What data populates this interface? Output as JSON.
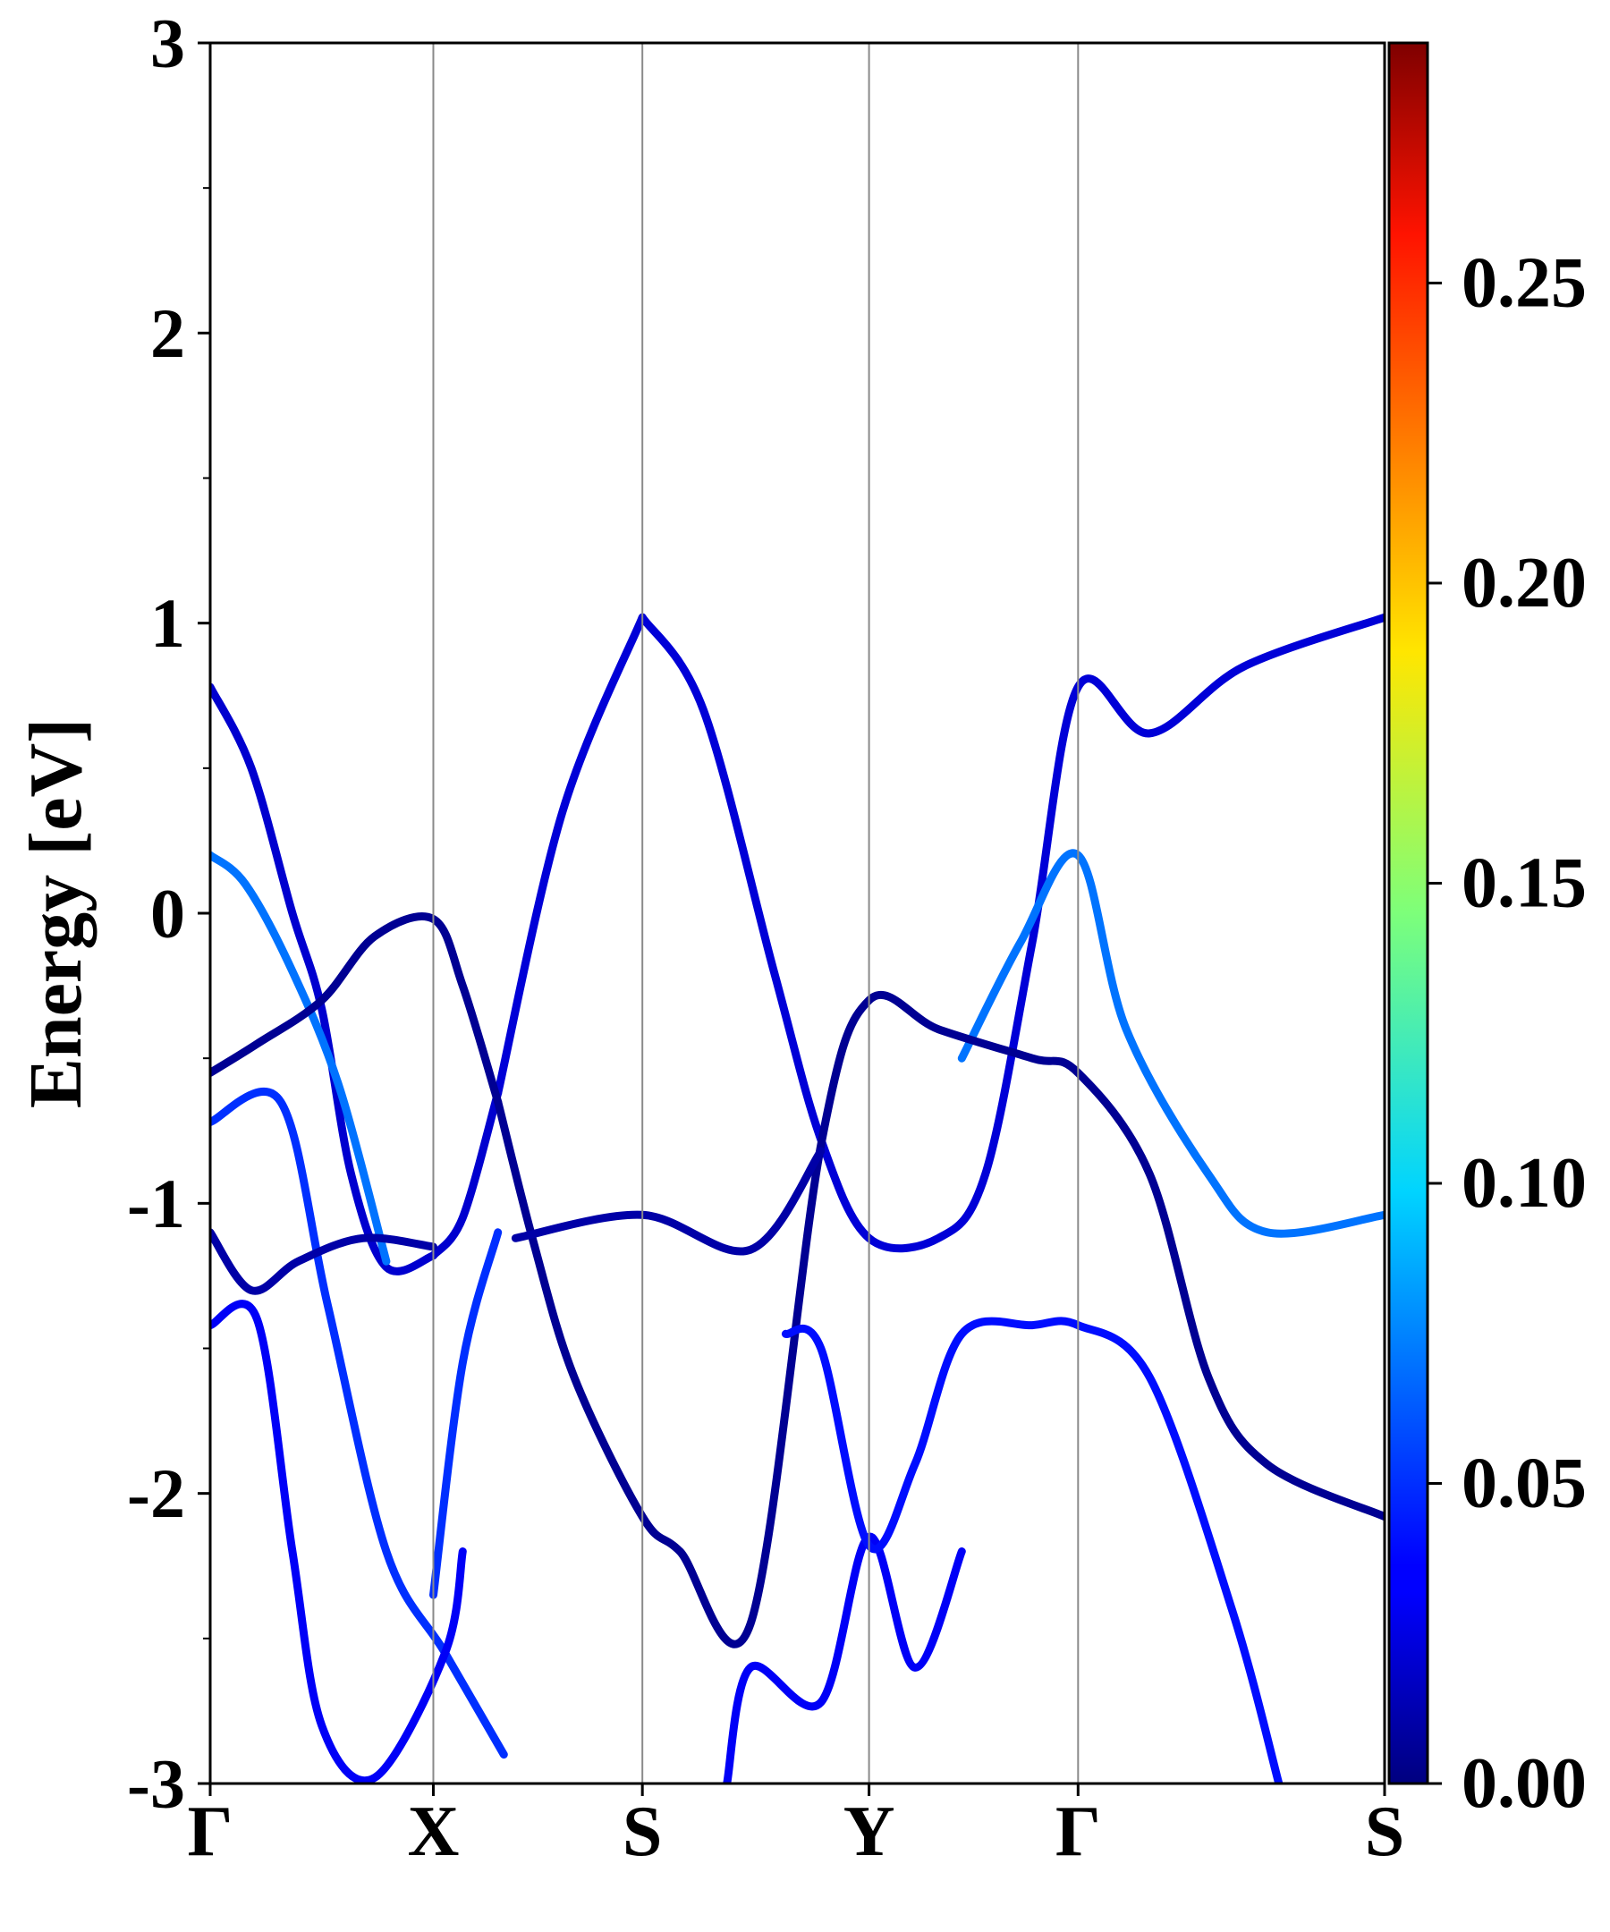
{
  "chart_data": {
    "type": "line",
    "title": "",
    "ylabel": "Energy [eV]",
    "xlabel": "",
    "ylim": [
      -3,
      3
    ],
    "y_ticks": [
      {
        "value": 3,
        "label": "3"
      },
      {
        "value": 2,
        "label": "2"
      },
      {
        "value": 1,
        "label": "1"
      },
      {
        "value": 0,
        "label": "0"
      },
      {
        "value": -1,
        "label": "-1"
      },
      {
        "value": -2,
        "label": "-2"
      },
      {
        "value": -3,
        "label": "-3"
      }
    ],
    "x_path": [
      {
        "label": "Γ",
        "position": 0.0
      },
      {
        "label": "X",
        "position": 0.19
      },
      {
        "label": "S",
        "position": 0.368
      },
      {
        "label": "Y",
        "position": 0.561
      },
      {
        "label": "Γ",
        "position": 0.739
      },
      {
        "label": "S",
        "position": 1.0
      }
    ],
    "colorbar": {
      "colormap": "jet",
      "range": [
        0.0,
        0.29
      ],
      "ticks": [
        {
          "value": 0.0,
          "label": "0.00"
        },
        {
          "value": 0.05,
          "label": "0.05"
        },
        {
          "value": 0.1,
          "label": "0.10"
        },
        {
          "value": 0.15,
          "label": "0.15"
        },
        {
          "value": 0.2,
          "label": "0.20"
        },
        {
          "value": 0.25,
          "label": "0.25"
        }
      ]
    },
    "bands": [
      {
        "weight": 0.02,
        "points": [
          [
            0,
            0.78
          ],
          [
            0.035,
            0.5
          ],
          [
            0.07,
            0.0
          ],
          [
            0.095,
            -0.33
          ],
          [
            0.12,
            -0.9
          ],
          [
            0.15,
            -1.22
          ],
          [
            0.19,
            -1.18
          ]
        ]
      },
      {
        "weight": 0.02,
        "points": [
          [
            0.19,
            -1.18
          ],
          [
            0.215,
            -1.05
          ],
          [
            0.245,
            -0.62
          ]
        ]
      },
      {
        "weight": 0.022,
        "points": [
          [
            0.368,
            1.02
          ],
          [
            0.42,
            0.7
          ],
          [
            0.48,
            -0.2
          ],
          [
            0.52,
            -0.78
          ],
          [
            0.561,
            -1.12
          ],
          [
            0.62,
            -1.12
          ],
          [
            0.66,
            -0.9
          ],
          [
            0.7,
            -0.1
          ],
          [
            0.739,
            0.78
          ],
          [
            0.8,
            0.62
          ],
          [
            0.88,
            0.85
          ],
          [
            1.0,
            1.02
          ]
        ]
      },
      {
        "weight": 0.022,
        "points": [
          [
            0.245,
            -0.62
          ],
          [
            0.3,
            0.35
          ],
          [
            0.368,
            1.02
          ]
        ]
      },
      {
        "weight": 0.07,
        "points": [
          [
            0,
            0.2
          ],
          [
            0.03,
            0.1
          ],
          [
            0.07,
            -0.2
          ],
          [
            0.11,
            -0.6
          ],
          [
            0.15,
            -1.2
          ]
        ]
      },
      {
        "weight": 0.07,
        "points": [
          [
            0.64,
            -0.5
          ],
          [
            0.69,
            -0.1
          ],
          [
            0.739,
            0.2
          ],
          [
            0.78,
            -0.4
          ],
          [
            0.85,
            -0.9
          ],
          [
            0.9,
            -1.1
          ],
          [
            1.0,
            -1.04
          ]
        ]
      },
      {
        "weight": 0.005,
        "points": [
          [
            0,
            -0.55
          ],
          [
            0.04,
            -0.45
          ],
          [
            0.095,
            -0.3
          ],
          [
            0.14,
            -0.08
          ],
          [
            0.19,
            -0.02
          ],
          [
            0.215,
            -0.25
          ],
          [
            0.245,
            -0.65
          ]
        ]
      },
      {
        "weight": 0.005,
        "points": [
          [
            0.245,
            -0.65
          ],
          [
            0.275,
            -1.13
          ],
          [
            0.31,
            -1.6
          ],
          [
            0.368,
            -2.08
          ],
          [
            0.4,
            -2.2
          ],
          [
            0.46,
            -2.45
          ],
          [
            0.52,
            -0.8
          ],
          [
            0.561,
            -0.3
          ],
          [
            0.62,
            -0.4
          ],
          [
            0.7,
            -0.5
          ],
          [
            0.739,
            -0.55
          ],
          [
            0.8,
            -0.9
          ],
          [
            0.85,
            -1.6
          ],
          [
            0.9,
            -1.9
          ],
          [
            1.0,
            -2.08
          ]
        ]
      },
      {
        "weight": 0.05,
        "points": [
          [
            0,
            -0.72
          ],
          [
            0.06,
            -0.65
          ],
          [
            0.1,
            -1.35
          ],
          [
            0.15,
            -2.2
          ],
          [
            0.2,
            -2.55
          ],
          [
            0.25,
            -2.9
          ]
        ]
      },
      {
        "weight": 0.05,
        "points": [
          [
            0.19,
            -2.35
          ],
          [
            0.215,
            -1.55
          ],
          [
            0.245,
            -1.1
          ]
        ]
      },
      {
        "weight": 0.01,
        "points": [
          [
            0,
            -1.1
          ],
          [
            0.035,
            -1.3
          ],
          [
            0.075,
            -1.2
          ],
          [
            0.13,
            -1.12
          ],
          [
            0.19,
            -1.15
          ]
        ]
      },
      {
        "weight": 0.01,
        "points": [
          [
            0.26,
            -1.12
          ],
          [
            0.368,
            -1.04
          ],
          [
            0.46,
            -1.16
          ],
          [
            0.52,
            -0.82
          ]
        ]
      },
      {
        "weight": 0.03,
        "points": [
          [
            0,
            -1.42
          ],
          [
            0.04,
            -1.4
          ],
          [
            0.07,
            -2.2
          ],
          [
            0.095,
            -2.8
          ],
          [
            0.14,
            -2.98
          ],
          [
            0.2,
            -2.55
          ],
          [
            0.215,
            -2.2
          ]
        ]
      },
      {
        "weight": 0.03,
        "points": [
          [
            0.44,
            -3.0
          ],
          [
            0.46,
            -2.6
          ],
          [
            0.52,
            -2.72
          ],
          [
            0.561,
            -2.15
          ],
          [
            0.6,
            -2.6
          ],
          [
            0.64,
            -2.2
          ]
        ]
      },
      {
        "weight": 0.04,
        "points": [
          [
            0.49,
            -1.45
          ],
          [
            0.52,
            -1.5
          ],
          [
            0.561,
            -2.18
          ],
          [
            0.6,
            -1.9
          ],
          [
            0.64,
            -1.45
          ],
          [
            0.7,
            -1.42
          ],
          [
            0.739,
            -1.42
          ],
          [
            0.8,
            -1.6
          ],
          [
            0.87,
            -2.4
          ],
          [
            0.91,
            -3.0
          ]
        ]
      }
    ]
  }
}
